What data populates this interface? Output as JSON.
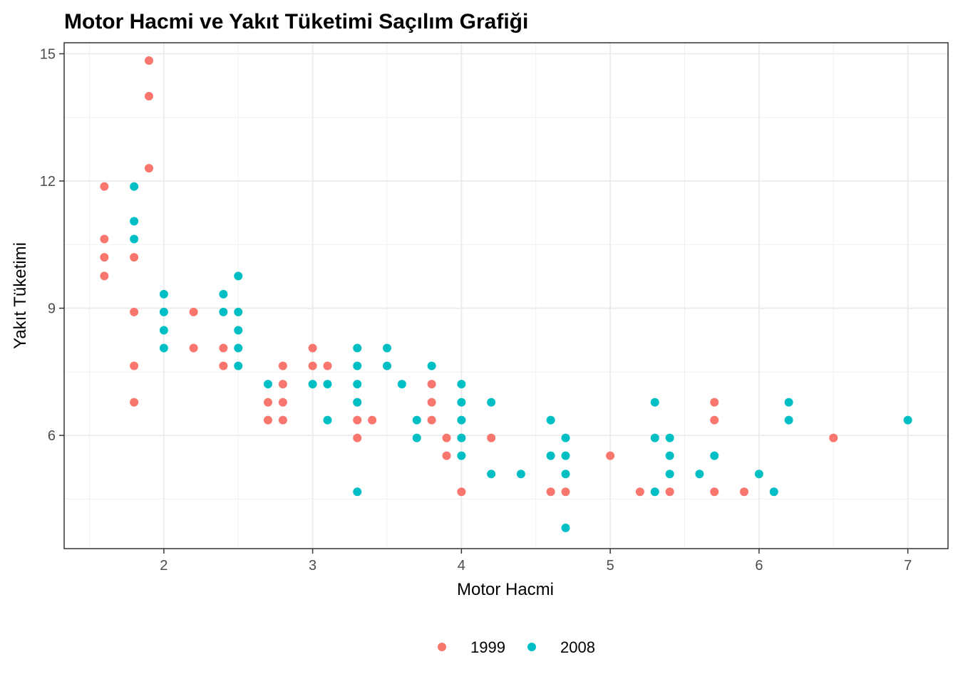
{
  "chart_data": {
    "type": "scatter",
    "title": "Motor Hacmi ve Yakıt Tüketimi Saçılım Grafiği",
    "xlabel": "Motor Hacmi",
    "ylabel": "Yakıt Tüketimi",
    "xlim": [
      1.33,
      7.27
    ],
    "ylim": [
      3.33,
      15.26
    ],
    "x_ticks": [
      2,
      3,
      4,
      5,
      6,
      7
    ],
    "y_ticks": [
      6,
      9,
      12,
      15
    ],
    "grid": true,
    "legend_position": "bottom",
    "series": [
      {
        "name": "1999",
        "color": "#F8766D",
        "points": [
          [
            1.6,
            11.87
          ],
          [
            1.6,
            10.63
          ],
          [
            1.6,
            10.2
          ],
          [
            1.6,
            9.76
          ],
          [
            1.8,
            10.2
          ],
          [
            1.8,
            8.91
          ],
          [
            1.8,
            7.64
          ],
          [
            1.8,
            6.78
          ],
          [
            1.9,
            14.84
          ],
          [
            1.9,
            14.0
          ],
          [
            1.9,
            12.3
          ],
          [
            2.2,
            8.91
          ],
          [
            2.2,
            8.06
          ],
          [
            2.4,
            8.06
          ],
          [
            2.4,
            7.64
          ],
          [
            2.7,
            6.78
          ],
          [
            2.7,
            6.36
          ],
          [
            2.8,
            7.64
          ],
          [
            2.8,
            7.21
          ],
          [
            2.8,
            6.78
          ],
          [
            2.8,
            6.36
          ],
          [
            3.0,
            8.06
          ],
          [
            3.0,
            7.64
          ],
          [
            3.1,
            7.64
          ],
          [
            3.3,
            6.78
          ],
          [
            3.3,
            6.36
          ],
          [
            3.3,
            5.94
          ],
          [
            3.4,
            6.36
          ],
          [
            3.8,
            7.21
          ],
          [
            3.8,
            6.78
          ],
          [
            3.8,
            6.36
          ],
          [
            3.9,
            5.94
          ],
          [
            3.9,
            5.52
          ],
          [
            4.0,
            4.67
          ],
          [
            4.2,
            5.94
          ],
          [
            4.6,
            4.67
          ],
          [
            4.7,
            4.67
          ],
          [
            5.0,
            5.52
          ],
          [
            5.2,
            4.67
          ],
          [
            5.4,
            4.67
          ],
          [
            5.7,
            6.78
          ],
          [
            5.7,
            6.36
          ],
          [
            5.7,
            4.67
          ],
          [
            5.9,
            4.67
          ],
          [
            6.5,
            5.94
          ]
        ]
      },
      {
        "name": "2008",
        "color": "#00BFC4",
        "points": [
          [
            1.8,
            11.87
          ],
          [
            1.8,
            11.05
          ],
          [
            1.8,
            10.63
          ],
          [
            2.0,
            9.33
          ],
          [
            2.0,
            8.91
          ],
          [
            2.0,
            8.48
          ],
          [
            2.0,
            8.06
          ],
          [
            2.4,
            9.33
          ],
          [
            2.4,
            8.91
          ],
          [
            2.5,
            9.76
          ],
          [
            2.5,
            8.91
          ],
          [
            2.5,
            8.48
          ],
          [
            2.5,
            8.06
          ],
          [
            2.5,
            7.64
          ],
          [
            2.7,
            7.21
          ],
          [
            3.0,
            7.21
          ],
          [
            3.1,
            7.21
          ],
          [
            3.1,
            6.36
          ],
          [
            3.3,
            8.06
          ],
          [
            3.3,
            7.64
          ],
          [
            3.3,
            7.21
          ],
          [
            3.3,
            6.78
          ],
          [
            3.3,
            4.67
          ],
          [
            3.5,
            8.06
          ],
          [
            3.5,
            7.64
          ],
          [
            3.6,
            7.21
          ],
          [
            3.7,
            6.36
          ],
          [
            3.7,
            5.94
          ],
          [
            3.8,
            7.64
          ],
          [
            4.0,
            7.21
          ],
          [
            4.0,
            6.78
          ],
          [
            4.0,
            6.36
          ],
          [
            4.0,
            5.94
          ],
          [
            4.0,
            5.52
          ],
          [
            4.2,
            6.78
          ],
          [
            4.2,
            5.09
          ],
          [
            4.4,
            5.09
          ],
          [
            4.6,
            6.36
          ],
          [
            4.6,
            5.52
          ],
          [
            4.7,
            5.94
          ],
          [
            4.7,
            5.52
          ],
          [
            4.7,
            5.09
          ],
          [
            4.7,
            3.82
          ],
          [
            5.3,
            6.78
          ],
          [
            5.3,
            5.94
          ],
          [
            5.3,
            4.67
          ],
          [
            5.4,
            5.94
          ],
          [
            5.4,
            5.52
          ],
          [
            5.4,
            5.09
          ],
          [
            5.6,
            5.09
          ],
          [
            5.7,
            5.52
          ],
          [
            6.0,
            5.09
          ],
          [
            6.1,
            4.67
          ],
          [
            6.2,
            6.78
          ],
          [
            6.2,
            6.36
          ],
          [
            7.0,
            6.36
          ]
        ]
      }
    ]
  }
}
